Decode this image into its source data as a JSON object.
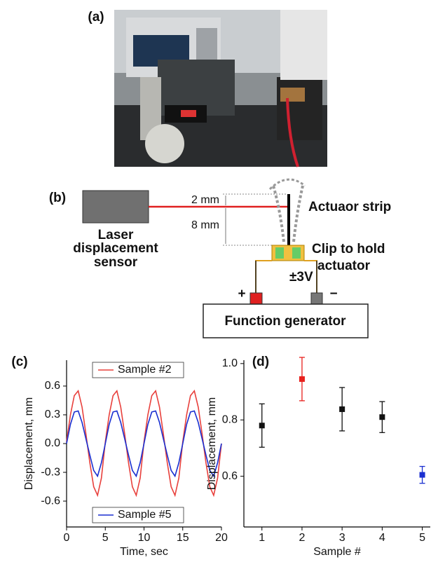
{
  "panels": {
    "a": "(a)",
    "b": "(b)",
    "c": "(c)",
    "d": "(d)"
  },
  "diagram": {
    "sensor": [
      "Laser",
      "displacement",
      "sensor"
    ],
    "gap_top": "2 mm",
    "gap_bottom": "8 mm",
    "strip": "Actuaor strip",
    "clip": [
      "Clip to hold",
      "actuator"
    ],
    "voltage": "±3V",
    "plus": "+",
    "minus": "−",
    "generator": "Function generator"
  },
  "chart_data": [
    {
      "type": "line",
      "x_label": "Time, sec",
      "y_label": "Displacement, mm",
      "x": [
        0,
        0.5,
        1,
        1.5,
        2,
        2.5,
        3,
        3.5,
        4,
        4.5,
        5,
        5.5,
        6,
        6.5,
        7,
        7.5,
        8,
        8.5,
        9,
        9.5,
        10,
        10.5,
        11,
        11.5,
        12,
        12.5,
        13,
        13.5,
        14,
        14.5,
        15,
        15.5,
        16,
        16.5,
        17,
        17.5,
        18,
        18.5,
        19,
        19.5,
        20
      ],
      "series": [
        {
          "name": "Sample #2",
          "color": "#e8403c",
          "values": [
            0.02,
            0.3,
            0.5,
            0.55,
            0.38,
            0.1,
            -0.2,
            -0.45,
            -0.54,
            -0.36,
            0.02,
            0.3,
            0.5,
            0.55,
            0.38,
            0.1,
            -0.2,
            -0.45,
            -0.54,
            -0.36,
            0.02,
            0.3,
            0.5,
            0.55,
            0.38,
            0.1,
            -0.2,
            -0.45,
            -0.54,
            -0.36,
            0.02,
            0.3,
            0.5,
            0.55,
            0.38,
            0.1,
            -0.2,
            -0.45,
            -0.54,
            -0.36,
            0.0
          ]
        },
        {
          "name": "Sample #5",
          "color": "#1a2fd0",
          "values": [
            0.0,
            0.2,
            0.33,
            0.34,
            0.22,
            0.05,
            -0.12,
            -0.28,
            -0.34,
            -0.2,
            0.0,
            0.2,
            0.33,
            0.34,
            0.22,
            0.05,
            -0.12,
            -0.28,
            -0.34,
            -0.2,
            0.0,
            0.2,
            0.33,
            0.34,
            0.22,
            0.05,
            -0.12,
            -0.28,
            -0.34,
            -0.2,
            0.0,
            0.2,
            0.33,
            0.34,
            0.22,
            0.05,
            -0.12,
            -0.28,
            -0.34,
            -0.2,
            0.0
          ]
        }
      ],
      "xlim": [
        0,
        20
      ],
      "xticks": [
        0,
        5,
        10,
        15,
        20
      ],
      "ylim": [
        -0.87,
        0.87
      ],
      "yticks": [
        -0.6,
        -0.3,
        {
          "value": 0,
          "label": "0.0"
        },
        0.3,
        0.6
      ]
    },
    {
      "type": "errorbar",
      "x_label": "Sample #",
      "y_label": "Displacement, mm",
      "x": [
        1,
        2,
        3,
        4,
        5
      ],
      "values": [
        0.78,
        0.945,
        0.838,
        0.81,
        0.605
      ],
      "errors": [
        0.077,
        0.077,
        0.077,
        0.055,
        0.03
      ],
      "colors": [
        "#111111",
        "#e8201c",
        "#111111",
        "#111111",
        "#1a2fd0"
      ],
      "xlim": [
        0.55,
        5.2
      ],
      "xticks": [
        1,
        2,
        3,
        4,
        5
      ],
      "ylim": [
        0.42,
        1.012
      ],
      "yticks": [
        0.6,
        0.8,
        {
          "value": 1,
          "label": "1.0"
        }
      ]
    }
  ]
}
